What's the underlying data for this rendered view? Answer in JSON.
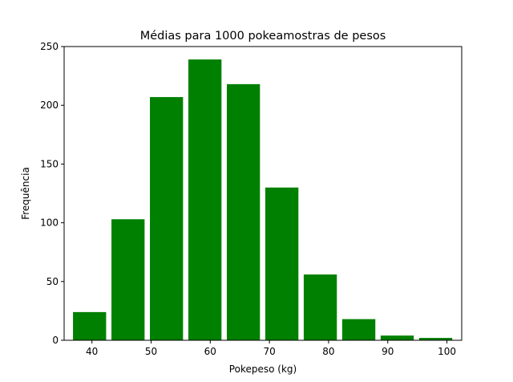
{
  "chart_data": {
    "type": "bar",
    "title": "Médias para 1000 pokeamostras de pesos",
    "xlabel": "Pokepeso (kg)",
    "ylabel": "Frequência",
    "xlim": [
      35.3,
      102.5
    ],
    "ylim": [
      0,
      250
    ],
    "xticks": [
      40,
      50,
      60,
      70,
      80,
      90,
      100
    ],
    "yticks": [
      0,
      50,
      100,
      150,
      200,
      250
    ],
    "grid": false,
    "bar_color": "#008000",
    "bars": [
      {
        "x_start": 36.8,
        "x_end": 42.4,
        "value": 24
      },
      {
        "x_start": 43.3,
        "x_end": 48.9,
        "value": 103
      },
      {
        "x_start": 49.8,
        "x_end": 55.4,
        "value": 207
      },
      {
        "x_start": 56.3,
        "x_end": 61.9,
        "value": 239
      },
      {
        "x_start": 62.8,
        "x_end": 68.4,
        "value": 218
      },
      {
        "x_start": 69.3,
        "x_end": 74.9,
        "value": 130
      },
      {
        "x_start": 75.8,
        "x_end": 81.4,
        "value": 56
      },
      {
        "x_start": 82.3,
        "x_end": 87.9,
        "value": 18
      },
      {
        "x_start": 88.8,
        "x_end": 94.4,
        "value": 4
      },
      {
        "x_start": 95.3,
        "x_end": 100.9,
        "value": 2
      }
    ]
  }
}
